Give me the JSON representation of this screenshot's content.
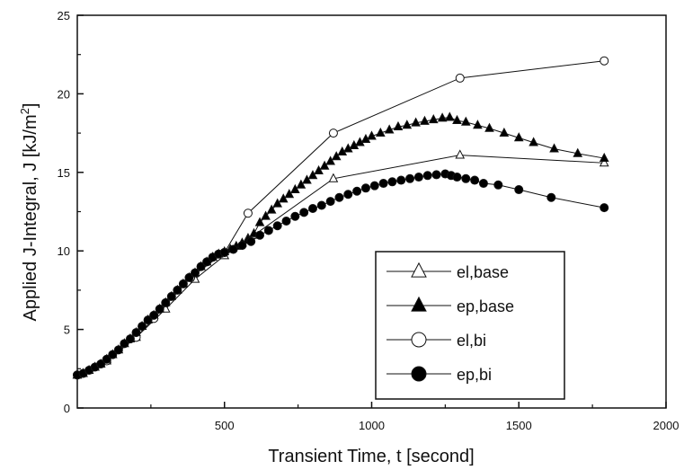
{
  "chart_data": {
    "type": "line",
    "title": "",
    "xlabel": "Transient Time, t [second]",
    "ylabel_main": "Applied J-Integral, J [kJ/m",
    "ylabel_sup": "2",
    "ylabel_close": "]",
    "xlim": [
      0,
      2000
    ],
    "ylim": [
      0,
      25
    ],
    "x_ticks": [
      500,
      1000,
      1500,
      2000
    ],
    "x_tick_labels": [
      "500",
      "1000",
      "1500",
      "2000"
    ],
    "y_ticks": [
      0,
      5,
      10,
      15,
      20,
      25
    ],
    "y_tick_labels": [
      "0",
      "5",
      "10",
      "15",
      "20",
      "25"
    ],
    "grid": false,
    "legend_position": "lower-right",
    "series": [
      {
        "name": "el,base",
        "marker": "triangle-open",
        "x": [
          0,
          100,
          200,
          300,
          400,
          500,
          580,
          600,
          870,
          1300,
          1790
        ],
        "y": [
          2.1,
          3.0,
          4.5,
          6.3,
          8.2,
          9.7,
          10.8,
          11.0,
          14.6,
          16.1,
          15.6
        ]
      },
      {
        "name": "ep,base",
        "marker": "triangle-filled",
        "x": [
          0,
          20,
          40,
          60,
          80,
          100,
          120,
          140,
          160,
          180,
          200,
          220,
          240,
          260,
          280,
          300,
          320,
          340,
          360,
          380,
          400,
          420,
          440,
          460,
          480,
          500,
          520,
          540,
          560,
          580,
          600,
          620,
          640,
          660,
          680,
          700,
          720,
          740,
          760,
          780,
          800,
          820,
          840,
          860,
          880,
          900,
          920,
          940,
          960,
          980,
          1000,
          1030,
          1060,
          1090,
          1120,
          1150,
          1180,
          1210,
          1240,
          1265,
          1290,
          1320,
          1360,
          1400,
          1450,
          1500,
          1550,
          1620,
          1700,
          1790
        ],
        "y": [
          2.1,
          2.2,
          2.4,
          2.6,
          2.8,
          3.1,
          3.4,
          3.7,
          4.1,
          4.4,
          4.8,
          5.2,
          5.6,
          5.9,
          6.3,
          6.7,
          7.1,
          7.5,
          7.9,
          8.3,
          8.6,
          9.0,
          9.3,
          9.6,
          9.8,
          9.95,
          10.1,
          10.3,
          10.5,
          10.7,
          11.1,
          11.8,
          12.2,
          12.6,
          13.0,
          13.3,
          13.6,
          13.9,
          14.2,
          14.5,
          14.8,
          15.1,
          15.4,
          15.7,
          16.0,
          16.3,
          16.5,
          16.7,
          16.9,
          17.1,
          17.3,
          17.5,
          17.7,
          17.9,
          18.0,
          18.15,
          18.25,
          18.35,
          18.45,
          18.5,
          18.3,
          18.2,
          18.0,
          17.8,
          17.5,
          17.2,
          16.9,
          16.5,
          16.2,
          15.9
        ]
      },
      {
        "name": "el,bi",
        "marker": "circle-open",
        "x": [
          0,
          100,
          200,
          260,
          385,
          500,
          580,
          870,
          1300,
          1790
        ],
        "y": [
          2.1,
          3.0,
          4.5,
          5.7,
          8.3,
          9.9,
          12.4,
          17.5,
          21.0,
          22.1
        ]
      },
      {
        "name": "ep,bi",
        "marker": "circle-filled",
        "x": [
          0,
          20,
          40,
          60,
          80,
          100,
          120,
          140,
          160,
          180,
          200,
          220,
          240,
          260,
          280,
          300,
          320,
          340,
          360,
          380,
          400,
          420,
          440,
          460,
          480,
          500,
          530,
          560,
          590,
          620,
          650,
          680,
          710,
          740,
          770,
          800,
          830,
          860,
          890,
          920,
          950,
          980,
          1010,
          1040,
          1070,
          1100,
          1130,
          1160,
          1190,
          1220,
          1250,
          1270,
          1290,
          1320,
          1350,
          1380,
          1430,
          1500,
          1610,
          1790
        ],
        "y": [
          2.1,
          2.2,
          2.4,
          2.6,
          2.8,
          3.1,
          3.4,
          3.7,
          4.1,
          4.4,
          4.8,
          5.2,
          5.6,
          5.9,
          6.3,
          6.7,
          7.1,
          7.5,
          7.9,
          8.3,
          8.6,
          9.0,
          9.3,
          9.6,
          9.8,
          9.9,
          10.1,
          10.35,
          10.6,
          11.0,
          11.3,
          11.6,
          11.9,
          12.2,
          12.45,
          12.7,
          12.9,
          13.15,
          13.4,
          13.6,
          13.8,
          14.0,
          14.15,
          14.3,
          14.4,
          14.5,
          14.6,
          14.7,
          14.8,
          14.85,
          14.9,
          14.8,
          14.7,
          14.6,
          14.5,
          14.3,
          14.2,
          13.9,
          13.4,
          12.75
        ]
      }
    ]
  }
}
